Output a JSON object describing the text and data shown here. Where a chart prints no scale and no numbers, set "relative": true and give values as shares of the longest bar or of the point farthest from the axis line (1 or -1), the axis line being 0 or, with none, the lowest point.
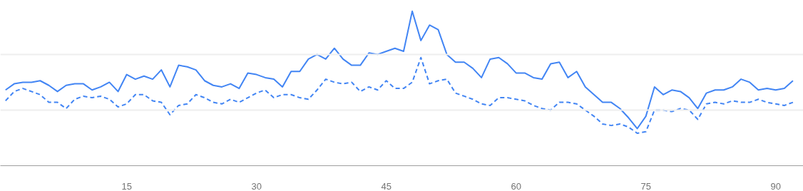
{
  "chart_data": {
    "type": "line",
    "relative": true,
    "marker": "none",
    "ref_lines": [
      {
        "axis": "y",
        "value": 0.36,
        "color": "#eeeeee"
      },
      {
        "axis": "y",
        "value": 0.72,
        "color": "#eeeeee"
      }
    ],
    "x": [
      1,
      2,
      3,
      4,
      5,
      6,
      7,
      8,
      9,
      10,
      11,
      12,
      13,
      14,
      15,
      16,
      17,
      18,
      19,
      20,
      21,
      22,
      23,
      24,
      25,
      26,
      27,
      28,
      29,
      30,
      31,
      32,
      33,
      34,
      35,
      36,
      37,
      38,
      39,
      40,
      41,
      42,
      43,
      44,
      45,
      46,
      47,
      48,
      49,
      50,
      51,
      52,
      53,
      54,
      55,
      56,
      57,
      58,
      59,
      60,
      61,
      62,
      63,
      64,
      65,
      66,
      67,
      68,
      69,
      70,
      71,
      72,
      73,
      74,
      75,
      76,
      77,
      78,
      79,
      80,
      81,
      82,
      83,
      84,
      85,
      86,
      87,
      88,
      89,
      90,
      91,
      92
    ],
    "xlim": [
      0.4,
      93.2
    ],
    "xticks": [
      15,
      30,
      45,
      60,
      75,
      90
    ],
    "series": [
      {
        "color": "#4285f4",
        "line_style": "solid",
        "values": [
          0.49,
          0.53,
          0.54,
          0.54,
          0.55,
          0.52,
          0.48,
          0.52,
          0.53,
          0.53,
          0.49,
          0.51,
          0.54,
          0.48,
          0.59,
          0.56,
          0.58,
          0.56,
          0.62,
          0.51,
          0.65,
          0.64,
          0.62,
          0.55,
          0.52,
          0.51,
          0.53,
          0.5,
          0.6,
          0.59,
          0.57,
          0.56,
          0.51,
          0.61,
          0.61,
          0.69,
          0.72,
          0.69,
          0.76,
          0.69,
          0.65,
          0.65,
          0.73,
          0.72,
          0.74,
          0.76,
          0.74,
          1.0,
          0.81,
          0.91,
          0.88,
          0.72,
          0.67,
          0.67,
          0.63,
          0.57,
          0.69,
          0.7,
          0.66,
          0.6,
          0.6,
          0.57,
          0.56,
          0.66,
          0.67,
          0.57,
          0.61,
          0.51,
          0.46,
          0.41,
          0.41,
          0.37,
          0.31,
          0.24,
          0.32,
          0.51,
          0.46,
          0.49,
          0.48,
          0.44,
          0.37,
          0.47,
          0.49,
          0.49,
          0.51,
          0.56,
          0.54,
          0.49,
          0.5,
          0.49,
          0.5,
          0.55
        ]
      },
      {
        "color": "#4285f4",
        "line_style": "dashed",
        "values": [
          0.42,
          0.48,
          0.5,
          0.48,
          0.46,
          0.41,
          0.41,
          0.37,
          0.43,
          0.45,
          0.44,
          0.45,
          0.43,
          0.38,
          0.4,
          0.46,
          0.46,
          0.42,
          0.41,
          0.33,
          0.39,
          0.4,
          0.46,
          0.44,
          0.41,
          0.4,
          0.43,
          0.41,
          0.44,
          0.47,
          0.49,
          0.44,
          0.46,
          0.46,
          0.44,
          0.43,
          0.49,
          0.56,
          0.54,
          0.53,
          0.54,
          0.48,
          0.51,
          0.49,
          0.55,
          0.5,
          0.5,
          0.54,
          0.7,
          0.53,
          0.55,
          0.56,
          0.47,
          0.45,
          0.43,
          0.4,
          0.39,
          0.44,
          0.44,
          0.43,
          0.42,
          0.39,
          0.37,
          0.36,
          0.41,
          0.41,
          0.4,
          0.36,
          0.32,
          0.27,
          0.26,
          0.27,
          0.25,
          0.21,
          0.22,
          0.36,
          0.36,
          0.35,
          0.37,
          0.36,
          0.3,
          0.4,
          0.41,
          0.4,
          0.42,
          0.41,
          0.41,
          0.43,
          0.41,
          0.4,
          0.39,
          0.41
        ]
      }
    ]
  }
}
